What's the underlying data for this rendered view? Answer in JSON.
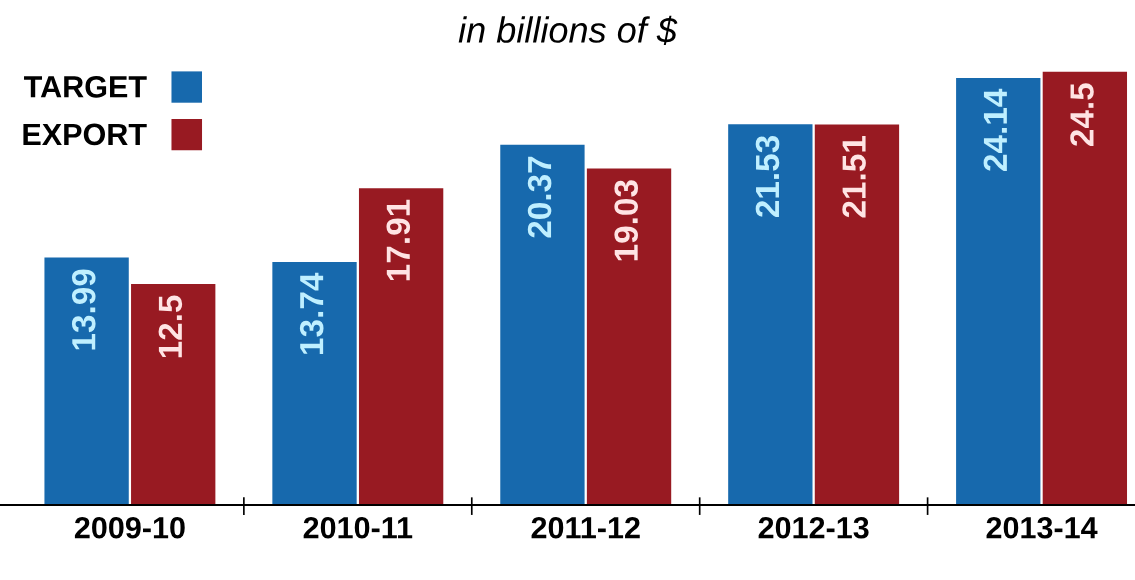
{
  "chart_data": {
    "type": "bar",
    "title": "in billions of $",
    "categories": [
      "2009-10",
      "2010-11",
      "2011-12",
      "2012-13",
      "2013-14"
    ],
    "series": [
      {
        "name": "TARGET",
        "color": "#1769ad",
        "values": [
          13.99,
          13.74,
          20.37,
          21.53,
          24.14
        ]
      },
      {
        "name": "EXPORT",
        "color": "#981a22",
        "values": [
          12.5,
          17.91,
          19.03,
          21.51,
          24.5
        ]
      }
    ],
    "data_labels": true,
    "legend": "top left",
    "grid": false
  }
}
